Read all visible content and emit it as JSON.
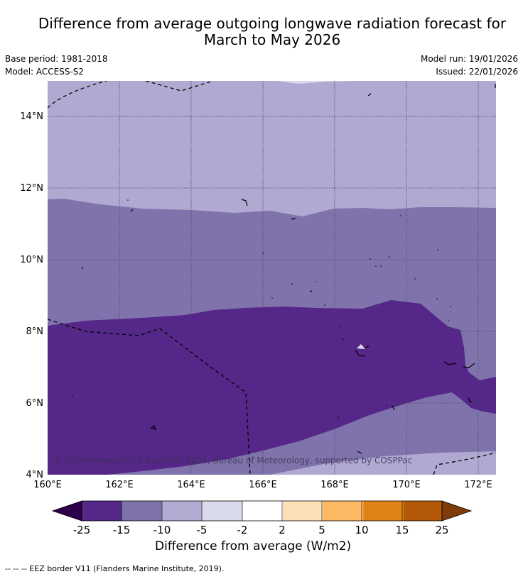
{
  "title_line1": "Difference from average outgoing longwave radiation forecast for",
  "title_line2": "March to May 2026",
  "meta": {
    "base_period": "Base period: 1981-2018",
    "model": "Model: ACCESS-S2",
    "model_run": "Model run: 19/01/2026",
    "issued": "Issued: 22/01/2026"
  },
  "axes": {
    "lat_labels": [
      "14°N",
      "12°N",
      "10°N",
      "8°N",
      "6°N",
      "4°N"
    ],
    "lon_labels": [
      "160°E",
      "162°E",
      "164°E",
      "166°E",
      "168°E",
      "170°E",
      "172°E"
    ]
  },
  "copyright": "© Commonwealth of Australia 2026, Bureau of Meteorology, supported by COSPPac",
  "colorbar": {
    "ticks": [
      "-25",
      "-15",
      "-10",
      "-5",
      "-2",
      "2",
      "5",
      "10",
      "15",
      "25"
    ],
    "colors": [
      "#2d004b",
      "#542788",
      "#8073ac",
      "#b2abd2",
      "#d8daeb",
      "#ffffff",
      "#fee0b6",
      "#fdb863",
      "#e08214",
      "#b35806",
      "#7f3b08"
    ],
    "label": "Difference from average (W/m2)"
  },
  "footer": "--  --  -- EEZ border V11 (Flanders Marine Institute, 2019)."
}
